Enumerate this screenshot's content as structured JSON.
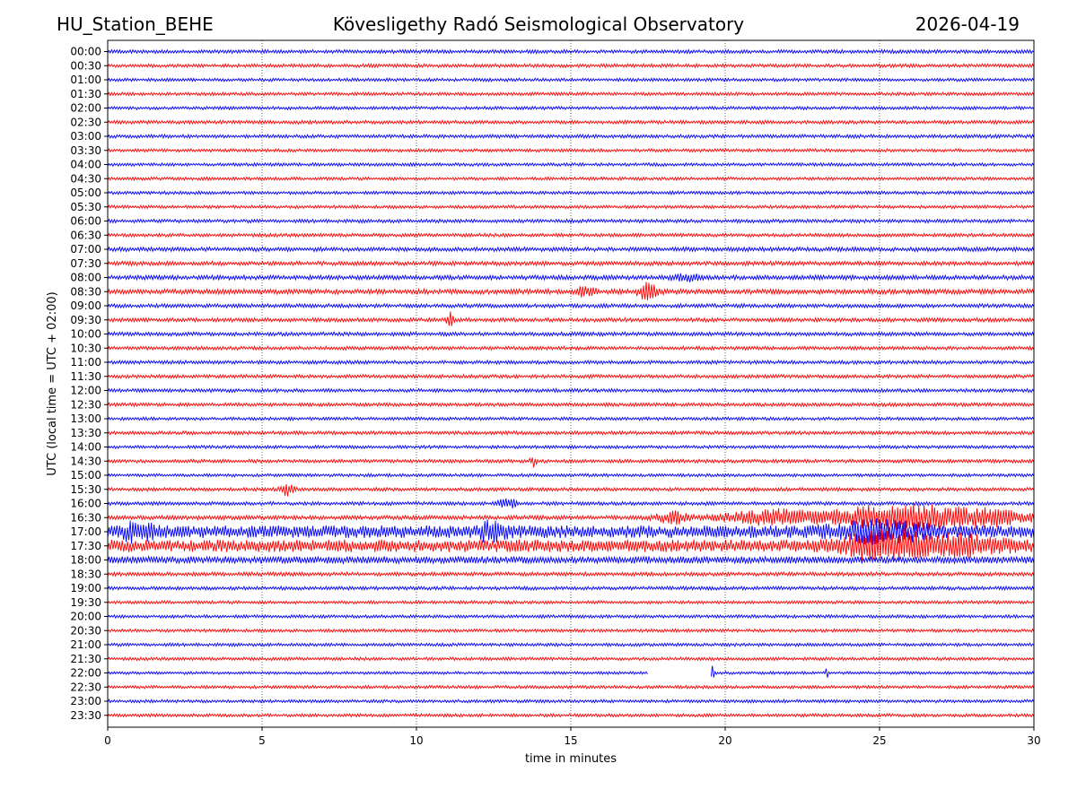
{
  "header": {
    "station": "HU_Station_BEHE",
    "title": "Kövesligethy Radó Seismological Observatory",
    "date": "2026-04-19"
  },
  "chart_data": {
    "type": "line",
    "title": "Kövesligethy Radó Seismological Observatory",
    "xlabel": "time in minutes",
    "ylabel": "UTC (local time = UTC + 02:00)",
    "xlim": [
      0,
      30
    ],
    "x_ticks": [
      "0",
      "5",
      "10",
      "15",
      "20",
      "25",
      "30"
    ],
    "grid": "vertical dotted lines at each x tick",
    "colors": {
      "even_rows": "#0000ff",
      "odd_rows": "#ff0000"
    },
    "rows": [
      {
        "label": "00:00",
        "noise": 2.0,
        "events": []
      },
      {
        "label": "00:30",
        "noise": 2.0,
        "events": []
      },
      {
        "label": "01:00",
        "noise": 1.8,
        "events": []
      },
      {
        "label": "01:30",
        "noise": 1.8,
        "events": []
      },
      {
        "label": "02:00",
        "noise": 1.8,
        "events": []
      },
      {
        "label": "02:30",
        "noise": 2.0,
        "events": []
      },
      {
        "label": "03:00",
        "noise": 2.0,
        "events": []
      },
      {
        "label": "03:30",
        "noise": 1.8,
        "events": []
      },
      {
        "label": "04:00",
        "noise": 1.8,
        "events": []
      },
      {
        "label": "04:30",
        "noise": 1.8,
        "events": []
      },
      {
        "label": "05:00",
        "noise": 1.8,
        "events": []
      },
      {
        "label": "05:30",
        "noise": 1.8,
        "events": []
      },
      {
        "label": "06:00",
        "noise": 2.0,
        "events": []
      },
      {
        "label": "06:30",
        "noise": 2.0,
        "events": []
      },
      {
        "label": "07:00",
        "noise": 2.4,
        "events": []
      },
      {
        "label": "07:30",
        "noise": 2.4,
        "events": []
      },
      {
        "label": "08:00",
        "noise": 2.6,
        "events": [
          {
            "t": 18.8,
            "amp": 4,
            "width": 0.4
          }
        ]
      },
      {
        "label": "08:30",
        "noise": 2.8,
        "events": [
          {
            "t": 15.5,
            "amp": 5,
            "width": 0.3
          },
          {
            "t": 17.5,
            "amp": 9,
            "width": 0.3
          }
        ]
      },
      {
        "label": "09:00",
        "noise": 2.2,
        "events": []
      },
      {
        "label": "09:30",
        "noise": 2.2,
        "events": [
          {
            "t": 11.1,
            "amp": 9,
            "width": 0.1
          }
        ]
      },
      {
        "label": "10:00",
        "noise": 2.2,
        "events": []
      },
      {
        "label": "10:30",
        "noise": 2.0,
        "events": []
      },
      {
        "label": "11:00",
        "noise": 2.0,
        "events": []
      },
      {
        "label": "11:30",
        "noise": 2.0,
        "events": []
      },
      {
        "label": "12:00",
        "noise": 2.0,
        "events": []
      },
      {
        "label": "12:30",
        "noise": 2.0,
        "events": []
      },
      {
        "label": "13:00",
        "noise": 1.8,
        "events": []
      },
      {
        "label": "13:30",
        "noise": 2.0,
        "events": []
      },
      {
        "label": "14:00",
        "noise": 1.8,
        "events": []
      },
      {
        "label": "14:30",
        "noise": 2.0,
        "events": [
          {
            "t": 13.8,
            "amp": 6,
            "width": 0.1
          }
        ]
      },
      {
        "label": "15:00",
        "noise": 1.8,
        "events": []
      },
      {
        "label": "15:30",
        "noise": 2.0,
        "events": [
          {
            "t": 5.8,
            "amp": 8,
            "width": 0.2
          }
        ]
      },
      {
        "label": "16:00",
        "noise": 2.0,
        "events": [
          {
            "t": 12.8,
            "amp": 7,
            "width": 0.15
          },
          {
            "t": 13.1,
            "amp": 6,
            "width": 0.1
          }
        ]
      },
      {
        "label": "16:30",
        "noise": 2.4,
        "events": [
          {
            "t": 18.3,
            "amp": 6,
            "width": 0.5
          },
          {
            "t": 21.5,
            "amp": 8,
            "width": 1.5
          },
          {
            "t": 25.5,
            "amp": 15,
            "width": 2.0
          },
          {
            "t": 28.5,
            "amp": 8,
            "width": 1.5
          }
        ]
      },
      {
        "label": "17:00",
        "noise": 7.0,
        "events": [
          {
            "t": 1.0,
            "amp": 8,
            "width": 0.5
          },
          {
            "t": 12.5,
            "amp": 8,
            "width": 0.5
          },
          {
            "t": 25.0,
            "amp": 8,
            "width": 1.5
          }
        ]
      },
      {
        "label": "17:30",
        "noise": 7.0,
        "events": [
          {
            "t": 25.2,
            "amp": 16,
            "width": 1.2
          },
          {
            "t": 27.5,
            "amp": 8,
            "width": 1.5
          }
        ]
      },
      {
        "label": "18:00",
        "noise": 4.0,
        "events": []
      },
      {
        "label": "18:30",
        "noise": 2.2,
        "events": []
      },
      {
        "label": "19:00",
        "noise": 2.0,
        "events": []
      },
      {
        "label": "19:30",
        "noise": 1.8,
        "events": []
      },
      {
        "label": "20:00",
        "noise": 1.8,
        "events": []
      },
      {
        "label": "20:30",
        "noise": 1.8,
        "events": []
      },
      {
        "label": "21:00",
        "noise": 1.8,
        "events": []
      },
      {
        "label": "21:30",
        "noise": 1.8,
        "events": []
      },
      {
        "label": "22:00",
        "noise": 1.6,
        "events": [
          {
            "t": 19.6,
            "amp": 10,
            "width": 0.05
          },
          {
            "t": 23.3,
            "amp": 5,
            "width": 0.05
          }
        ],
        "gaps": [
          [
            17.5,
            19.5
          ]
        ]
      },
      {
        "label": "22:30",
        "noise": 1.8,
        "events": []
      },
      {
        "label": "23:00",
        "noise": 1.8,
        "events": []
      },
      {
        "label": "23:30",
        "noise": 1.8,
        "events": []
      }
    ]
  }
}
